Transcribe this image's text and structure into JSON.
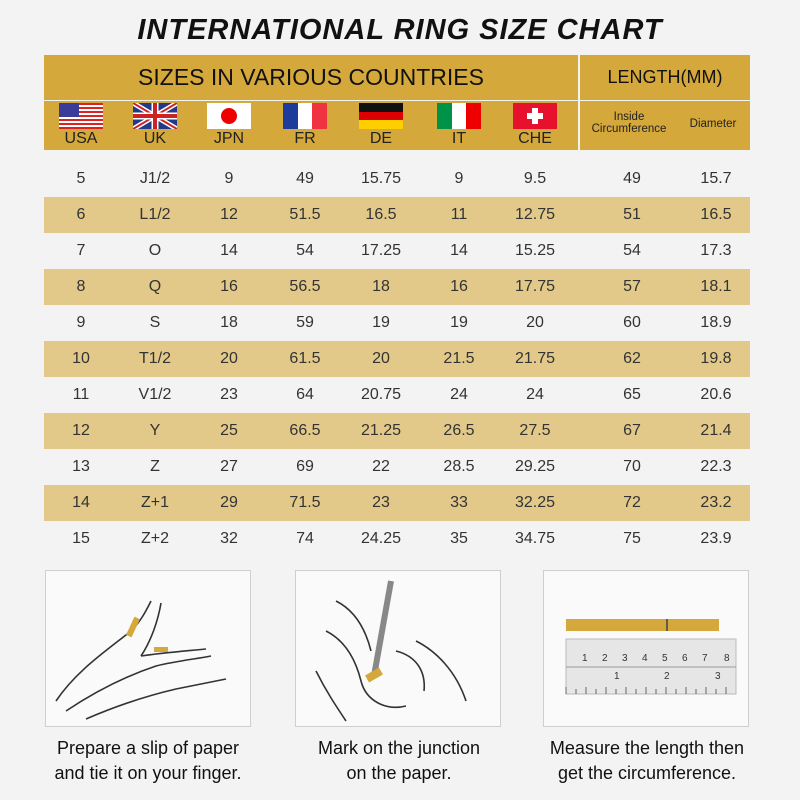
{
  "title": "INTERNATIONAL RING SIZE CHART",
  "header": {
    "countries_label": "SIZES IN VARIOUS COUNTRIES",
    "length_label": "LENGTH(MM)",
    "countries": [
      {
        "code": "USA",
        "flag": "usa-flag"
      },
      {
        "code": "UK",
        "flag": "uk-flag"
      },
      {
        "code": "JPN",
        "flag": "japan-flag"
      },
      {
        "code": "FR",
        "flag": "france-flag"
      },
      {
        "code": "DE",
        "flag": "germany-flag"
      },
      {
        "code": "IT",
        "flag": "italy-flag"
      },
      {
        "code": "CHE",
        "flag": "switzerland-flag"
      }
    ],
    "inside_circumference": "Inside Circumference",
    "diameter": "Diameter"
  },
  "colors": {
    "header": "#d4a83a",
    "stripe": "#e2c98a",
    "background": "#f3f3f3"
  },
  "rows": [
    [
      "5",
      "J1/2",
      "9",
      "49",
      "15.75",
      "9",
      "9.5",
      "49",
      "15.7"
    ],
    [
      "6",
      "L1/2",
      "12",
      "51.5",
      "16.5",
      "11",
      "12.75",
      "51",
      "16.5"
    ],
    [
      "7",
      "O",
      "14",
      "54",
      "17.25",
      "14",
      "15.25",
      "54",
      "17.3"
    ],
    [
      "8",
      "Q",
      "16",
      "56.5",
      "18",
      "16",
      "17.75",
      "57",
      "18.1"
    ],
    [
      "9",
      "S",
      "18",
      "59",
      "19",
      "19",
      "20",
      "60",
      "18.9"
    ],
    [
      "10",
      "T1/2",
      "20",
      "61.5",
      "20",
      "21.5",
      "21.75",
      "62",
      "19.8"
    ],
    [
      "11",
      "V1/2",
      "23",
      "64",
      "20.75",
      "24",
      "24",
      "65",
      "20.6"
    ],
    [
      "12",
      "Y",
      "25",
      "66.5",
      "21.25",
      "26.5",
      "27.5",
      "67",
      "21.4"
    ],
    [
      "13",
      "Z",
      "27",
      "69",
      "22",
      "28.5",
      "29.25",
      "70",
      "22.3"
    ],
    [
      "14",
      "Z+1",
      "29",
      "71.5",
      "23",
      "33",
      "32.25",
      "72",
      "23.2"
    ],
    [
      "15",
      "Z+2",
      "32",
      "74",
      "24.25",
      "35",
      "34.75",
      "75",
      "23.9"
    ]
  ],
  "steps": [
    {
      "line1": "Prepare a slip of paper",
      "line2": "and tie it on your finger."
    },
    {
      "line1": "Mark on the junction",
      "line2": "on the paper."
    },
    {
      "line1": "Measure the length then",
      "line2": "get the circumference."
    }
  ]
}
